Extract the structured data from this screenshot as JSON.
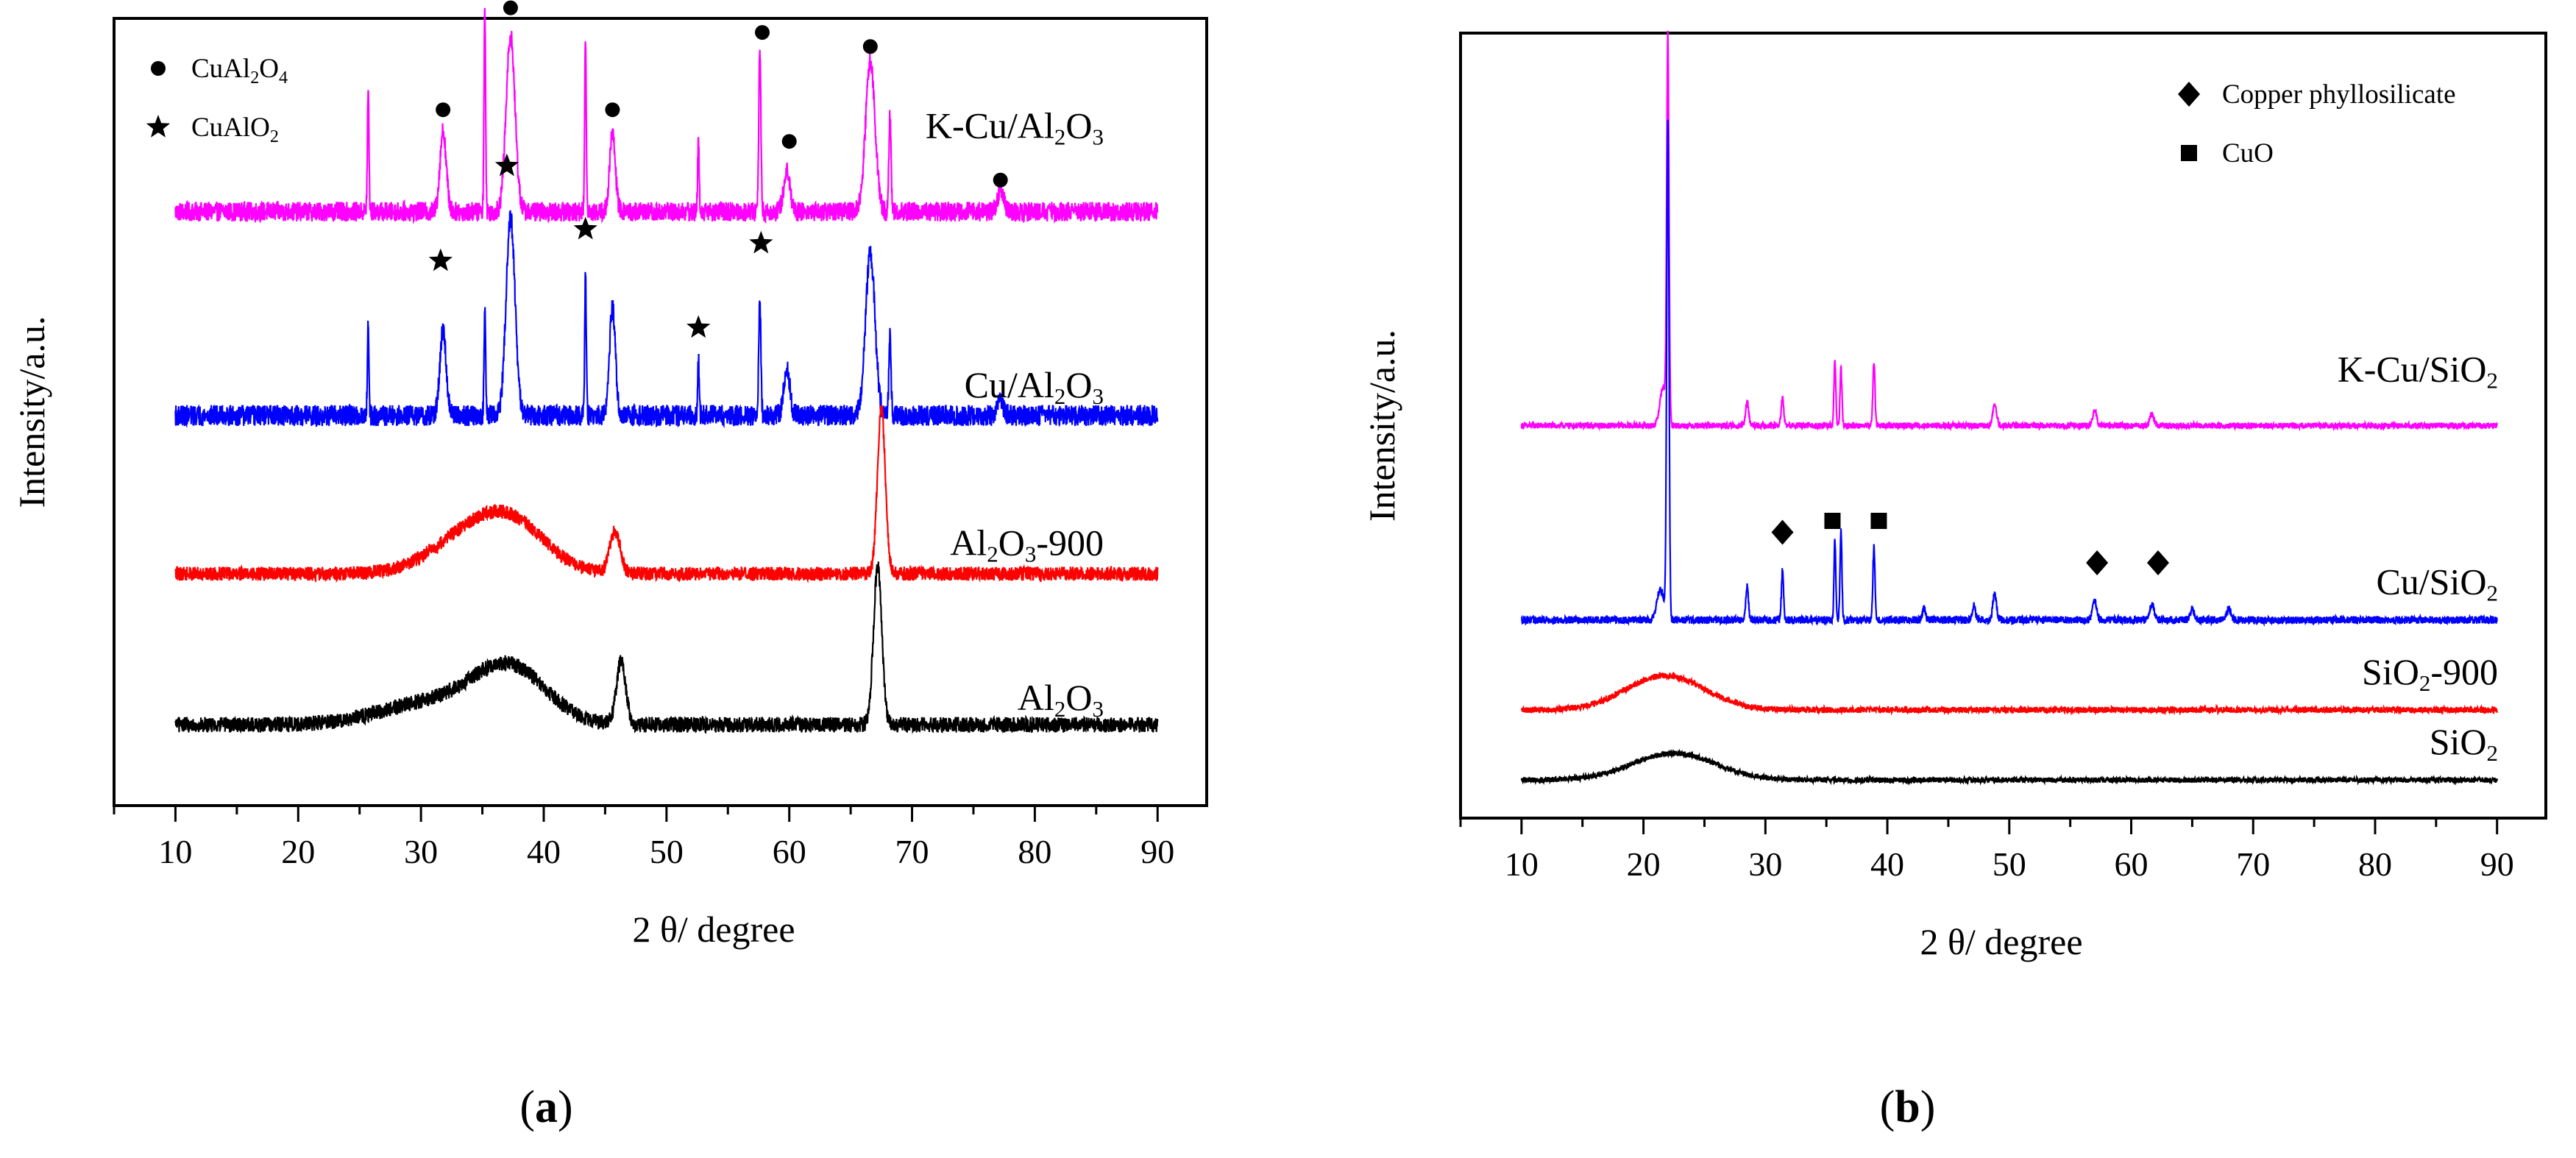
{
  "chart_data": [
    {
      "type": "line",
      "panel_label": "a",
      "title": "",
      "xlabel": "2 θ/ degree",
      "ylabel": "Intensity/a.u.",
      "xlim": [
        5,
        94
      ],
      "ylim": [
        -0.6,
        10.6
      ],
      "xticks": [
        10,
        20,
        30,
        40,
        50,
        60,
        70,
        80,
        90
      ],
      "y_ticks_shown": false,
      "legend": [
        {
          "marker": "circle",
          "label_main": "CuAl",
          "sub1": "2",
          "mid": "O",
          "sub2": "4"
        },
        {
          "marker": "star",
          "label_main": "CuAlO",
          "sub1": "2",
          "mid": "",
          "sub2": ""
        }
      ],
      "legend_position": "top-left",
      "series": [
        {
          "name": "K-Cu/Al2O3",
          "label_html": [
            "K-Cu/Al",
            "2",
            "O",
            "3"
          ],
          "color": "#ff00ff",
          "baseline": 7.85,
          "noise": 0.14,
          "peaks": [
            [
              25.7,
              1.7,
              0.15
            ],
            [
              31.8,
              1.15,
              0.6
            ],
            [
              35.2,
              3.0,
              0.15
            ],
            [
              37.3,
              2.5,
              0.85
            ],
            [
              43.4,
              2.5,
              0.15
            ],
            [
              45.6,
              1.1,
              0.55
            ],
            [
              52.6,
              1.0,
              0.15
            ],
            [
              57.6,
              2.3,
              0.2
            ],
            [
              59.8,
              0.6,
              0.6
            ],
            [
              66.6,
              2.15,
              0.9
            ],
            [
              68.2,
              1.4,
              0.2
            ],
            [
              77.2,
              0.3,
              0.6
            ]
          ],
          "humps": []
        },
        {
          "name": "Cu/Al2O3",
          "label_html": [
            "Cu/Al",
            "2",
            "O",
            "3"
          ],
          "color": "#0000ff",
          "baseline": 4.95,
          "noise": 0.15,
          "peaks": [
            [
              25.7,
              1.3,
              0.15
            ],
            [
              31.8,
              1.2,
              0.6
            ],
            [
              35.2,
              1.5,
              0.15
            ],
            [
              37.3,
              2.8,
              0.85
            ],
            [
              43.4,
              2.0,
              0.15
            ],
            [
              45.6,
              1.55,
              0.55
            ],
            [
              52.6,
              0.8,
              0.15
            ],
            [
              57.6,
              1.65,
              0.2
            ],
            [
              59.8,
              0.65,
              0.6
            ],
            [
              66.6,
              2.3,
              0.9
            ],
            [
              68.2,
              1.2,
              0.2
            ],
            [
              77.2,
              0.2,
              0.6
            ]
          ],
          "humps": []
        },
        {
          "name": "Al2O3-900",
          "label_html": [
            "Al",
            "2",
            "O",
            "3",
            "-900"
          ],
          "color": "#ff0000",
          "baseline": 2.7,
          "noise": 0.1,
          "peaks": [
            [
              45.8,
              0.6,
              1.0
            ],
            [
              67.5,
              2.35,
              0.75
            ]
          ],
          "humps": [
            [
              33.5,
              0.45,
              3.0
            ],
            [
              37.5,
              0.65,
              2.8
            ]
          ]
        },
        {
          "name": "Al2O3",
          "label_html": [
            "Al",
            "2",
            "O",
            "3"
          ],
          "color": "#000000",
          "baseline": 0.55,
          "noise": 0.11,
          "peaks": [
            [
              46.3,
              0.9,
              0.9
            ],
            [
              67.2,
              2.25,
              0.8
            ]
          ],
          "humps": [
            [
              37.2,
              0.8,
              3.0
            ],
            [
              30.5,
              0.3,
              4.0
            ]
          ]
        }
      ],
      "markers": [
        {
          "type": "circle",
          "x": 31.8,
          "y": 9.3
        },
        {
          "type": "circle",
          "x": 37.3,
          "y": 10.75
        },
        {
          "type": "circle",
          "x": 45.6,
          "y": 9.3
        },
        {
          "type": "circle",
          "x": 57.8,
          "y": 10.4
        },
        {
          "type": "circle",
          "x": 60.0,
          "y": 8.85
        },
        {
          "type": "circle",
          "x": 66.6,
          "y": 10.2
        },
        {
          "type": "circle",
          "x": 77.2,
          "y": 8.3
        },
        {
          "type": "star",
          "x": 31.6,
          "y": 7.15
        },
        {
          "type": "star",
          "x": 37.0,
          "y": 8.5
        },
        {
          "type": "star",
          "x": 43.4,
          "y": 7.6
        },
        {
          "type": "star",
          "x": 52.6,
          "y": 6.2
        },
        {
          "type": "star",
          "x": 57.7,
          "y": 7.4
        }
      ]
    },
    {
      "type": "line",
      "panel_label": "b",
      "title": "",
      "xlabel": "2 θ/ degree",
      "ylabel": "Intensity/a.u.",
      "xlim": [
        5,
        94
      ],
      "ylim": [
        -0.4,
        9.9
      ],
      "xticks": [
        10,
        20,
        30,
        40,
        50,
        60,
        70,
        80,
        90
      ],
      "y_ticks_shown": false,
      "legend": [
        {
          "marker": "diamond",
          "label_main": "Copper  phyllosilicate",
          "sub1": "",
          "mid": "",
          "sub2": ""
        },
        {
          "marker": "square",
          "label_main": "CuO",
          "sub1": "",
          "mid": "",
          "sub2": ""
        }
      ],
      "legend_position": "top-right",
      "series": [
        {
          "name": "K-Cu/SiO2",
          "label_html": [
            "K-Cu/SiO",
            "2",
            "",
            "",
            ""
          ],
          "color": "#ff00ff",
          "baseline": 4.75,
          "noise": 0.04,
          "peaks": [
            [
              22.0,
              5.0,
              0.22
            ],
            [
              21.6,
              0.5,
              0.6
            ],
            [
              28.5,
              0.3,
              0.3
            ],
            [
              31.4,
              0.35,
              0.25
            ],
            [
              35.7,
              0.85,
              0.18
            ],
            [
              36.2,
              0.75,
              0.18
            ],
            [
              38.9,
              0.85,
              0.2
            ],
            [
              48.8,
              0.25,
              0.4
            ],
            [
              57.0,
              0.2,
              0.4
            ],
            [
              61.7,
              0.15,
              0.4
            ]
          ],
          "humps": []
        },
        {
          "name": "Cu/SiO2",
          "label_html": [
            "Cu/SiO",
            "2",
            "",
            "",
            ""
          ],
          "color": "#0000ff",
          "baseline": 2.2,
          "noise": 0.05,
          "peaks": [
            [
              22.0,
              6.5,
              0.22
            ],
            [
              21.4,
              0.4,
              0.7
            ],
            [
              28.5,
              0.45,
              0.25
            ],
            [
              31.4,
              0.65,
              0.2
            ],
            [
              35.7,
              1.05,
              0.18
            ],
            [
              36.2,
              1.15,
              0.18
            ],
            [
              38.9,
              0.95,
              0.2
            ],
            [
              43.0,
              0.15,
              0.3
            ],
            [
              47.1,
              0.2,
              0.3
            ],
            [
              48.8,
              0.35,
              0.35
            ],
            [
              57.0,
              0.25,
              0.4
            ],
            [
              61.7,
              0.2,
              0.4
            ],
            [
              65.0,
              0.15,
              0.4
            ],
            [
              68.0,
              0.15,
              0.4
            ]
          ],
          "humps": []
        },
        {
          "name": "SiO2-900",
          "label_html": [
            "SiO",
            "2",
            "-900",
            "",
            ""
          ],
          "color": "#ff0000",
          "baseline": 1.02,
          "noise": 0.04,
          "peaks": [],
          "humps": [
            [
              21.8,
              0.45,
              3.2
            ]
          ]
        },
        {
          "name": "SiO2",
          "label_html": [
            "SiO",
            "2",
            "",
            "",
            ""
          ],
          "color": "#000000",
          "baseline": 0.1,
          "noise": 0.035,
          "peaks": [],
          "humps": [
            [
              22.5,
              0.35,
              3.4
            ]
          ]
        }
      ],
      "markers": [
        {
          "type": "diamond",
          "x": 31.4,
          "y": 3.35
        },
        {
          "type": "diamond",
          "x": 57.2,
          "y": 2.95
        },
        {
          "type": "diamond",
          "x": 62.2,
          "y": 2.95
        },
        {
          "type": "square",
          "x": 35.5,
          "y": 3.5
        },
        {
          "type": "square",
          "x": 39.3,
          "y": 3.5
        }
      ]
    }
  ]
}
